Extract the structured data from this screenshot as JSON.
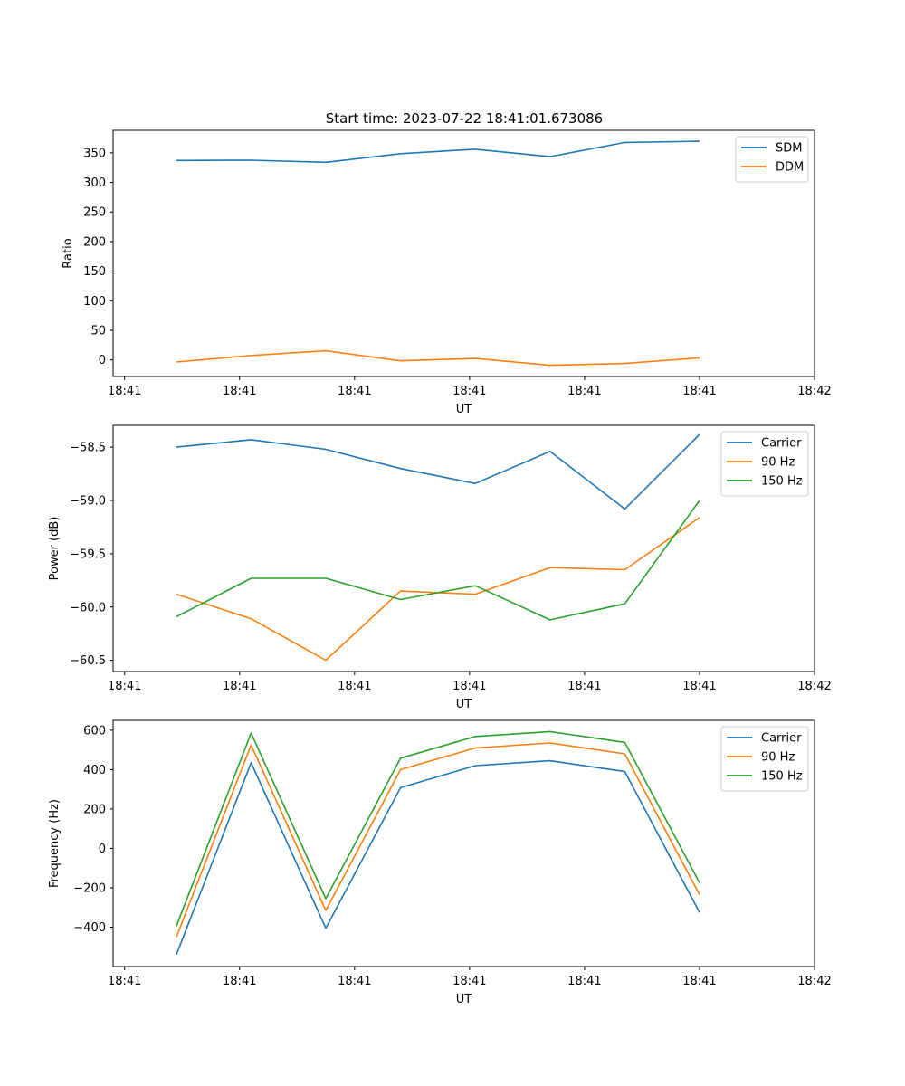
{
  "title": "Start time: 2023-07-22 18:41:01.673086",
  "colors": {
    "blue": "#1f77b4",
    "orange": "#ff7f0e",
    "green": "#2ca02c"
  },
  "chart_data": [
    {
      "type": "line",
      "title": "Start time: 2023-07-22 18:41:01.673086",
      "xlabel": "UT",
      "ylabel": "Ratio",
      "x": [
        0.55,
        1.2,
        1.85,
        2.5,
        3.15,
        3.8,
        4.45,
        5.1
      ],
      "xlim": [
        0,
        6.1
      ],
      "xticks": [
        0.1,
        1.1,
        2.1,
        3.1,
        4.1,
        5.1,
        6.1
      ],
      "xtick_labels": [
        "18:41",
        "18:41",
        "18:41",
        "18:41",
        "18:41",
        "18:41",
        "18:42"
      ],
      "ylim": [
        -28,
        388
      ],
      "yticks": [
        0,
        50,
        100,
        150,
        200,
        250,
        300,
        350
      ],
      "ytick_labels": [
        "0",
        "50",
        "100",
        "150",
        "200",
        "250",
        "300",
        "350"
      ],
      "legend_position": "top-right",
      "series": [
        {
          "name": "SDM",
          "color": "#1f77b4",
          "values": [
            337,
            337.5,
            334,
            348.5,
            356,
            343.5,
            367.5,
            369.5
          ]
        },
        {
          "name": "DDM",
          "color": "#ff7f0e",
          "values": [
            -3.5,
            7.5,
            15.5,
            -1.5,
            2.5,
            -9,
            -6,
            3.5
          ]
        }
      ]
    },
    {
      "type": "line",
      "title": "",
      "xlabel": "UT",
      "ylabel": "Power (dB)",
      "x": [
        0.55,
        1.2,
        1.85,
        2.5,
        3.15,
        3.8,
        4.45,
        5.1
      ],
      "xlim": [
        0,
        6.1
      ],
      "xticks": [
        0.1,
        1.1,
        2.1,
        3.1,
        4.1,
        5.1,
        6.1
      ],
      "xtick_labels": [
        "18:41",
        "18:41",
        "18:41",
        "18:41",
        "18:41",
        "18:41",
        "18:42"
      ],
      "ylim": [
        -60.605,
        -58.295
      ],
      "yticks": [
        -60.5,
        -60.0,
        -59.5,
        -59.0,
        -58.5
      ],
      "ytick_labels": [
        "−60.5",
        "−60.0",
        "−59.5",
        "−59.0",
        "−58.5"
      ],
      "legend_position": "top-right",
      "series": [
        {
          "name": "Carrier",
          "color": "#1f77b4",
          "values": [
            -58.5,
            -58.43,
            -58.52,
            -58.7,
            -58.84,
            -58.54,
            -59.08,
            -58.38
          ]
        },
        {
          "name": "90 Hz",
          "color": "#ff7f0e",
          "values": [
            -59.88,
            -60.11,
            -60.5,
            -59.85,
            -59.88,
            -59.63,
            -59.65,
            -59.16
          ]
        },
        {
          "name": "150 Hz",
          "color": "#2ca02c",
          "values": [
            -60.09,
            -59.73,
            -59.73,
            -59.93,
            -59.8,
            -60.12,
            -59.97,
            -59.0
          ]
        }
      ]
    },
    {
      "type": "line",
      "title": "",
      "xlabel": "UT",
      "ylabel": "Frequency (Hz)",
      "x": [
        0.55,
        1.2,
        1.85,
        2.5,
        3.15,
        3.8,
        4.45,
        5.1
      ],
      "xlim": [
        0,
        6.1
      ],
      "xticks": [
        0.1,
        1.1,
        2.1,
        3.1,
        4.1,
        5.1,
        6.1
      ],
      "xtick_labels": [
        "18:41",
        "18:41",
        "18:41",
        "18:41",
        "18:41",
        "18:41",
        "18:42"
      ],
      "ylim": [
        -600,
        650
      ],
      "yticks": [
        -400,
        -200,
        0,
        200,
        400,
        600
      ],
      "ytick_labels": [
        "−400",
        "−200",
        "0",
        "200",
        "400",
        "600"
      ],
      "legend_position": "top-right",
      "series": [
        {
          "name": "Carrier",
          "color": "#1f77b4",
          "values": [
            -540,
            435,
            -405,
            308,
            420,
            445,
            390,
            -325
          ]
        },
        {
          "name": "90 Hz",
          "color": "#ff7f0e",
          "values": [
            -450,
            525,
            -315,
            400,
            510,
            535,
            480,
            -235
          ]
        },
        {
          "name": "150 Hz",
          "color": "#2ca02c",
          "values": [
            -395,
            585,
            -255,
            458,
            568,
            593,
            538,
            -175
          ]
        }
      ]
    }
  ]
}
